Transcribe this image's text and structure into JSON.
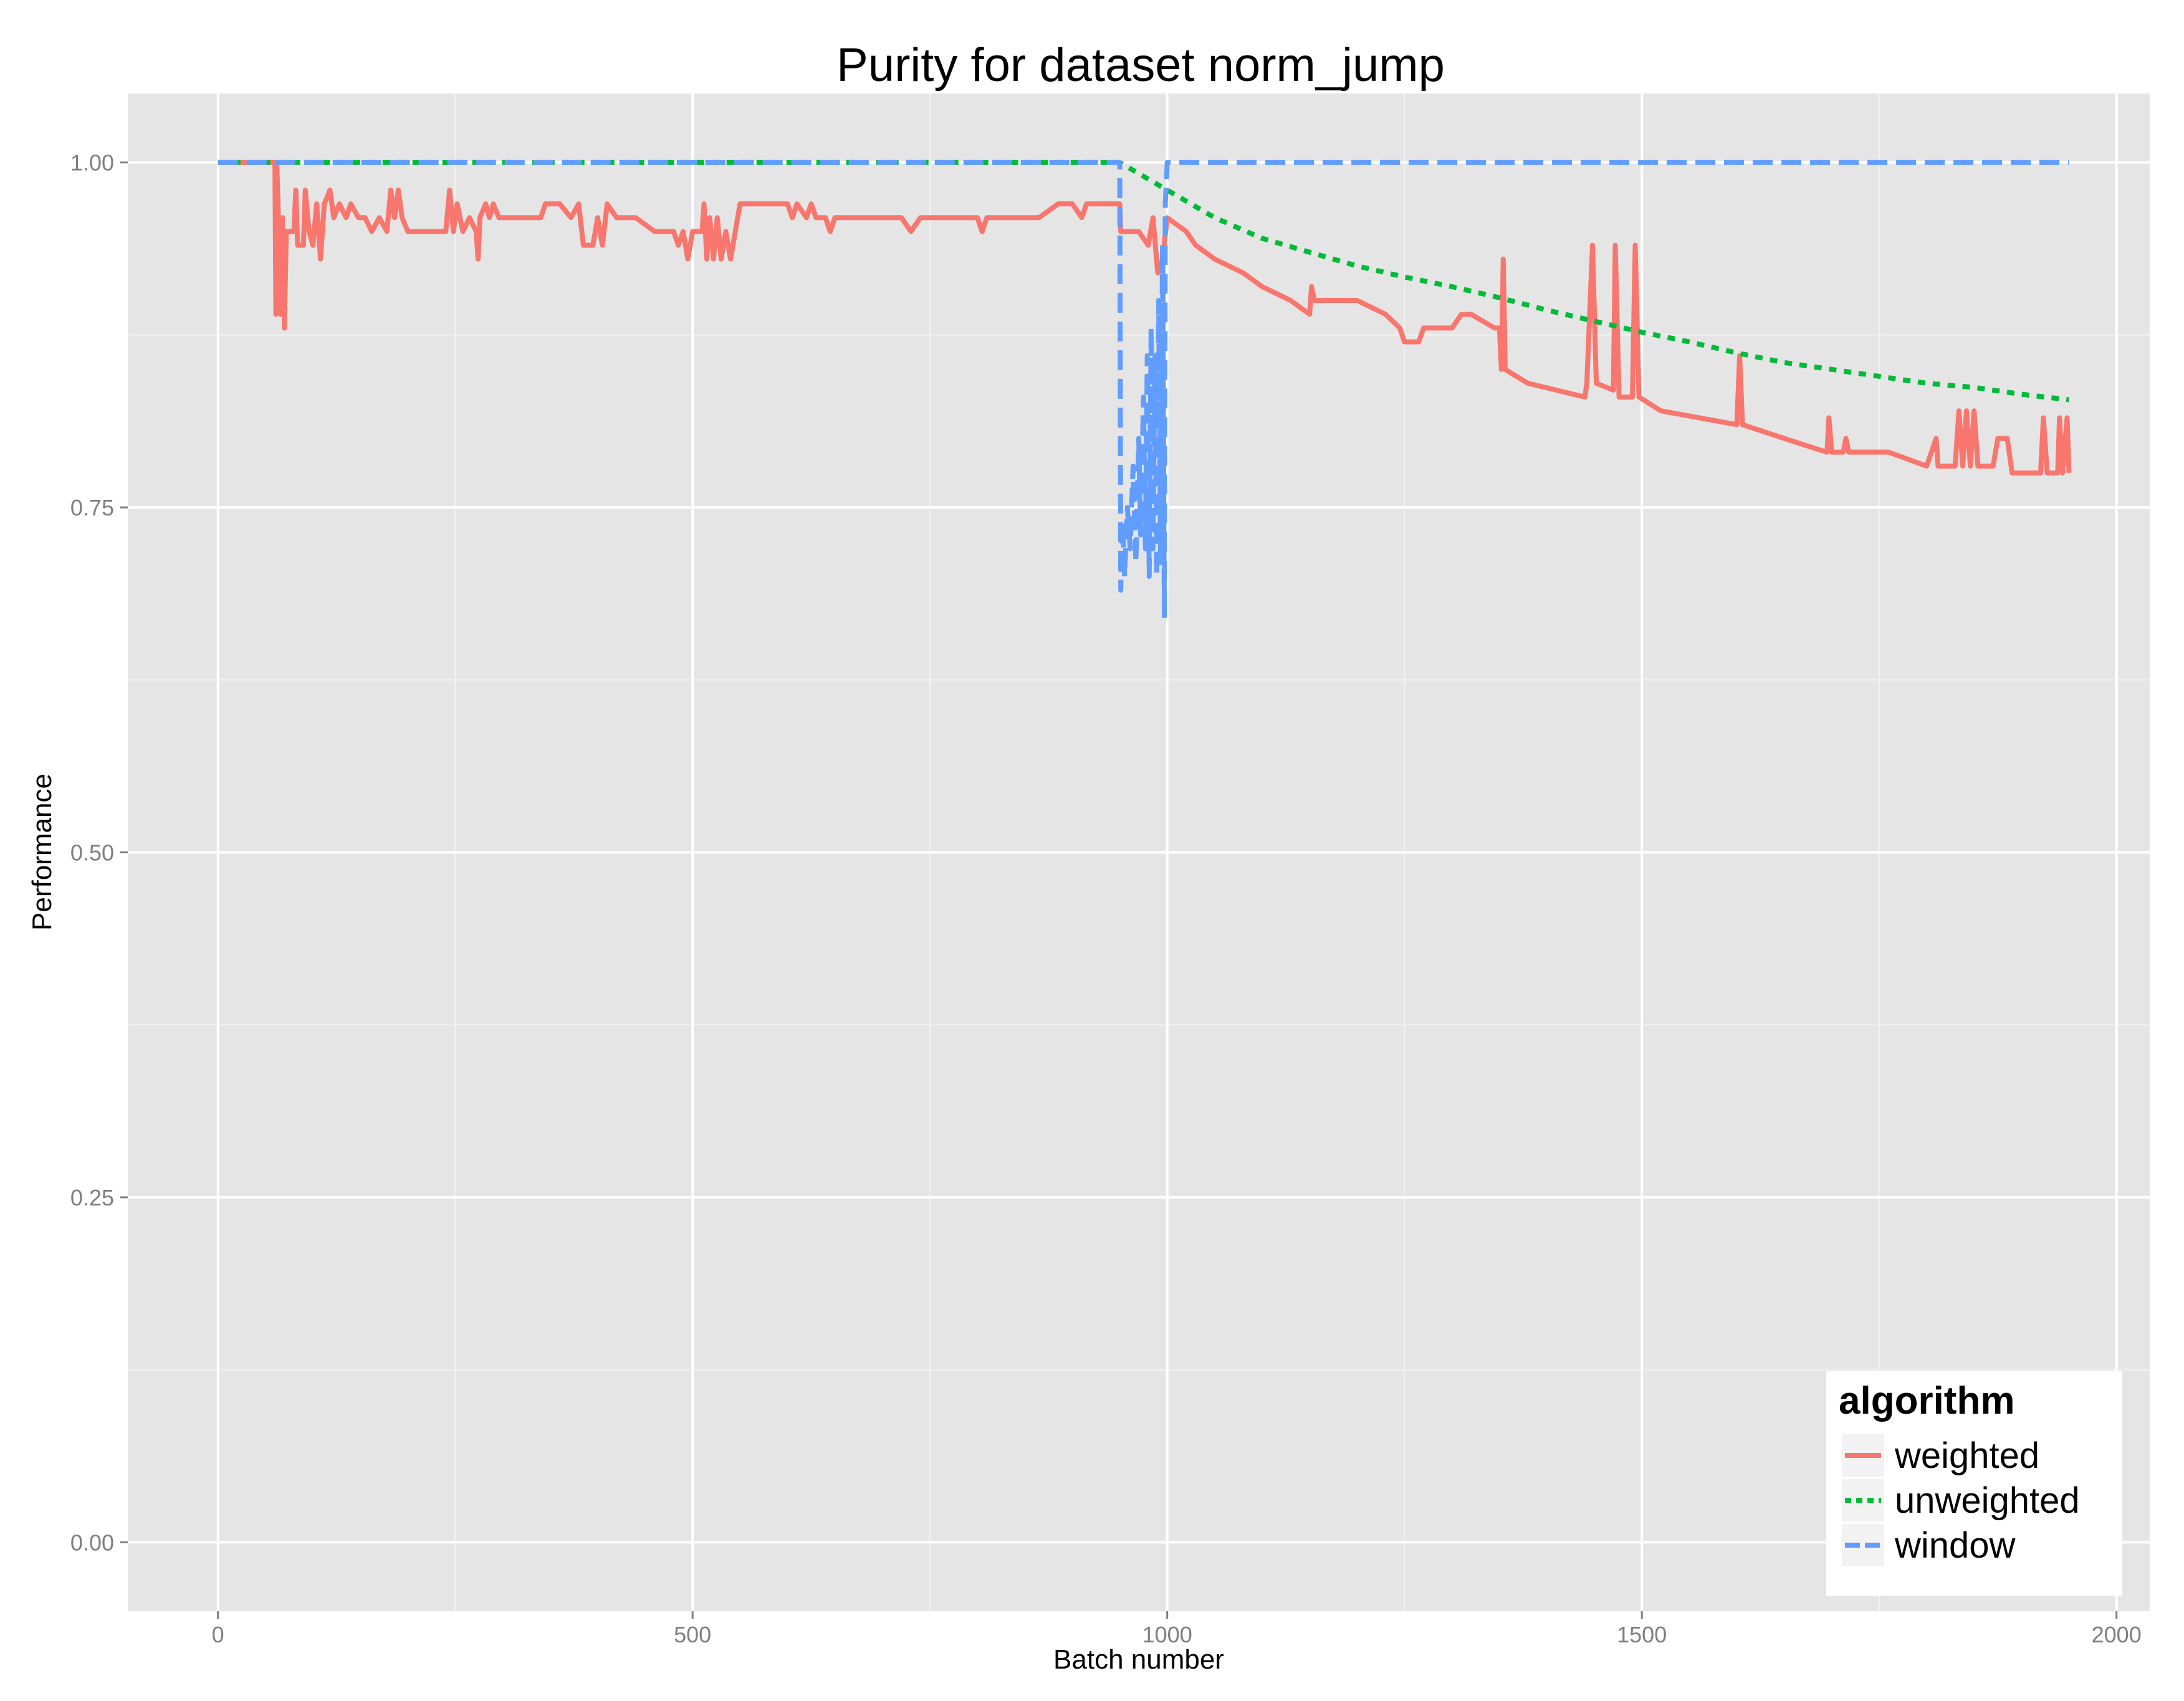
{
  "chart_data": {
    "type": "line",
    "title": "Purity for dataset norm_jump",
    "xlabel": "Batch number",
    "ylabel": "Performance",
    "xlim": [
      -95,
      2035
    ],
    "ylim": [
      -0.05,
      1.05
    ],
    "x_ticks": [
      0,
      500,
      1000,
      1500,
      2000
    ],
    "x_tick_labels": [
      "0",
      "500",
      "1000",
      "1500",
      "2000"
    ],
    "y_ticks": [
      0.0,
      0.25,
      0.5,
      0.75,
      1.0
    ],
    "y_tick_labels": [
      "0.00",
      "0.25",
      "0.50",
      "0.75",
      "1.00"
    ],
    "grid": true,
    "legend": {
      "title": "algorithm",
      "position": "bottom-right"
    },
    "series": [
      {
        "name": "weighted",
        "color": "#F8766D",
        "style": "solid",
        "points": [
          [
            0,
            1.0
          ],
          [
            60,
            1.0
          ],
          [
            61,
            0.89
          ],
          [
            62,
            1.0
          ],
          [
            64,
            0.95
          ],
          [
            66,
            0.89
          ],
          [
            68,
            0.96
          ],
          [
            70,
            0.88
          ],
          [
            72,
            0.95
          ],
          [
            80,
            0.95
          ],
          [
            82,
            0.98
          ],
          [
            84,
            0.94
          ],
          [
            90,
            0.94
          ],
          [
            92,
            0.98
          ],
          [
            96,
            0.95
          ],
          [
            100,
            0.94
          ],
          [
            104,
            0.97
          ],
          [
            108,
            0.93
          ],
          [
            112,
            0.97
          ],
          [
            118,
            0.98
          ],
          [
            122,
            0.96
          ],
          [
            128,
            0.97
          ],
          [
            135,
            0.96
          ],
          [
            140,
            0.97
          ],
          [
            148,
            0.96
          ],
          [
            155,
            0.96
          ],
          [
            162,
            0.95
          ],
          [
            170,
            0.96
          ],
          [
            178,
            0.95
          ],
          [
            182,
            0.98
          ],
          [
            186,
            0.96
          ],
          [
            190,
            0.98
          ],
          [
            194,
            0.96
          ],
          [
            200,
            0.95
          ],
          [
            220,
            0.95
          ],
          [
            240,
            0.95
          ],
          [
            244,
            0.98
          ],
          [
            248,
            0.95
          ],
          [
            252,
            0.97
          ],
          [
            258,
            0.95
          ],
          [
            265,
            0.96
          ],
          [
            272,
            0.95
          ],
          [
            274,
            0.93
          ],
          [
            276,
            0.96
          ],
          [
            282,
            0.97
          ],
          [
            286,
            0.96
          ],
          [
            290,
            0.97
          ],
          [
            296,
            0.96
          ],
          [
            300,
            0.96
          ],
          [
            320,
            0.96
          ],
          [
            340,
            0.96
          ],
          [
            345,
            0.97
          ],
          [
            360,
            0.97
          ],
          [
            372,
            0.96
          ],
          [
            380,
            0.97
          ],
          [
            385,
            0.94
          ],
          [
            395,
            0.94
          ],
          [
            400,
            0.96
          ],
          [
            405,
            0.94
          ],
          [
            410,
            0.97
          ],
          [
            420,
            0.96
          ],
          [
            440,
            0.96
          ],
          [
            460,
            0.95
          ],
          [
            480,
            0.95
          ],
          [
            485,
            0.94
          ],
          [
            490,
            0.95
          ],
          [
            495,
            0.93
          ],
          [
            500,
            0.95
          ],
          [
            510,
            0.95
          ],
          [
            512,
            0.97
          ],
          [
            515,
            0.93
          ],
          [
            518,
            0.96
          ],
          [
            522,
            0.93
          ],
          [
            526,
            0.96
          ],
          [
            530,
            0.93
          ],
          [
            535,
            0.95
          ],
          [
            540,
            0.93
          ],
          [
            545,
            0.95
          ],
          [
            550,
            0.97
          ],
          [
            560,
            0.97
          ],
          [
            580,
            0.97
          ],
          [
            600,
            0.97
          ],
          [
            605,
            0.96
          ],
          [
            610,
            0.97
          ],
          [
            620,
            0.96
          ],
          [
            625,
            0.97
          ],
          [
            630,
            0.96
          ],
          [
            640,
            0.96
          ],
          [
            645,
            0.95
          ],
          [
            650,
            0.96
          ],
          [
            660,
            0.96
          ],
          [
            700,
            0.96
          ],
          [
            720,
            0.96
          ],
          [
            730,
            0.95
          ],
          [
            740,
            0.96
          ],
          [
            790,
            0.96
          ],
          [
            800,
            0.96
          ],
          [
            805,
            0.95
          ],
          [
            810,
            0.96
          ],
          [
            840,
            0.96
          ],
          [
            865,
            0.96
          ],
          [
            885,
            0.97
          ],
          [
            900,
            0.97
          ],
          [
            910,
            0.96
          ],
          [
            915,
            0.97
          ],
          [
            930,
            0.97
          ],
          [
            950,
            0.97
          ],
          [
            951,
            0.95
          ],
          [
            970,
            0.95
          ],
          [
            980,
            0.94
          ],
          [
            985,
            0.96
          ],
          [
            990,
            0.92
          ],
          [
            995,
            0.93
          ],
          [
            1000,
            0.96
          ],
          [
            1010,
            0.955
          ],
          [
            1020,
            0.95
          ],
          [
            1030,
            0.94
          ],
          [
            1050,
            0.93
          ],
          [
            1080,
            0.92
          ],
          [
            1100,
            0.91
          ],
          [
            1130,
            0.9
          ],
          [
            1150,
            0.89
          ],
          [
            1152,
            0.91
          ],
          [
            1155,
            0.9
          ],
          [
            1170,
            0.9
          ],
          [
            1200,
            0.9
          ],
          [
            1230,
            0.89
          ],
          [
            1245,
            0.88
          ],
          [
            1250,
            0.87
          ],
          [
            1265,
            0.87
          ],
          [
            1270,
            0.88
          ],
          [
            1285,
            0.88
          ],
          [
            1300,
            0.88
          ],
          [
            1310,
            0.89
          ],
          [
            1320,
            0.89
          ],
          [
            1345,
            0.88
          ],
          [
            1350,
            0.88
          ],
          [
            1352,
            0.85
          ],
          [
            1354,
            0.93
          ],
          [
            1356,
            0.85
          ],
          [
            1380,
            0.84
          ],
          [
            1440,
            0.83
          ],
          [
            1442,
            0.84
          ],
          [
            1448,
            0.94
          ],
          [
            1452,
            0.84
          ],
          [
            1470,
            0.835
          ],
          [
            1472,
            0.94
          ],
          [
            1476,
            0.83
          ],
          [
            1490,
            0.83
          ],
          [
            1493,
            0.94
          ],
          [
            1497,
            0.83
          ],
          [
            1520,
            0.82
          ],
          [
            1560,
            0.815
          ],
          [
            1600,
            0.81
          ],
          [
            1603,
            0.86
          ],
          [
            1606,
            0.81
          ],
          [
            1650,
            0.8
          ],
          [
            1695,
            0.79
          ],
          [
            1697,
            0.815
          ],
          [
            1700,
            0.79
          ],
          [
            1712,
            0.79
          ],
          [
            1715,
            0.8
          ],
          [
            1718,
            0.79
          ],
          [
            1740,
            0.79
          ],
          [
            1760,
            0.79
          ],
          [
            1800,
            0.78
          ],
          [
            1810,
            0.8
          ],
          [
            1812,
            0.78
          ],
          [
            1830,
            0.78
          ],
          [
            1834,
            0.82
          ],
          [
            1838,
            0.78
          ],
          [
            1842,
            0.82
          ],
          [
            1846,
            0.78
          ],
          [
            1850,
            0.82
          ],
          [
            1854,
            0.78
          ],
          [
            1870,
            0.78
          ],
          [
            1875,
            0.8
          ],
          [
            1885,
            0.8
          ],
          [
            1890,
            0.775
          ],
          [
            1920,
            0.775
          ],
          [
            1923,
            0.815
          ],
          [
            1927,
            0.775
          ],
          [
            1938,
            0.775
          ],
          [
            1940,
            0.815
          ],
          [
            1943,
            0.775
          ],
          [
            1948,
            0.815
          ],
          [
            1950,
            0.775
          ]
        ]
      },
      {
        "name": "unweighted",
        "color": "#00BA38",
        "style": "dotted",
        "points": [
          [
            0,
            1.0
          ],
          [
            950,
            1.0
          ],
          [
            1000,
            0.98
          ],
          [
            1050,
            0.96
          ],
          [
            1100,
            0.945
          ],
          [
            1150,
            0.935
          ],
          [
            1200,
            0.925
          ],
          [
            1250,
            0.917
          ],
          [
            1300,
            0.91
          ],
          [
            1350,
            0.902
          ],
          [
            1400,
            0.893
          ],
          [
            1450,
            0.885
          ],
          [
            1500,
            0.877
          ],
          [
            1550,
            0.87
          ],
          [
            1600,
            0.862
          ],
          [
            1650,
            0.855
          ],
          [
            1700,
            0.85
          ],
          [
            1750,
            0.845
          ],
          [
            1800,
            0.84
          ],
          [
            1850,
            0.837
          ],
          [
            1900,
            0.832
          ],
          [
            1950,
            0.828
          ]
        ]
      },
      {
        "name": "window",
        "color": "#619CFF",
        "style": "dashed",
        "points": [
          [
            0,
            1.0
          ],
          [
            950,
            1.0
          ],
          [
            951,
            0.69
          ],
          [
            953,
            0.74
          ],
          [
            955,
            0.7
          ],
          [
            958,
            0.75
          ],
          [
            961,
            0.72
          ],
          [
            964,
            0.78
          ],
          [
            967,
            0.71
          ],
          [
            970,
            0.8
          ],
          [
            972,
            0.73
          ],
          [
            975,
            0.83
          ],
          [
            977,
            0.72
          ],
          [
            979,
            0.86
          ],
          [
            981,
            0.7
          ],
          [
            983,
            0.88
          ],
          [
            985,
            0.72
          ],
          [
            987,
            0.86
          ],
          [
            989,
            0.7
          ],
          [
            991,
            0.9
          ],
          [
            993,
            0.71
          ],
          [
            995,
            0.94
          ],
          [
            997,
            0.67
          ],
          [
            998,
            0.97
          ],
          [
            1000,
            1.0
          ],
          [
            1950,
            1.0
          ]
        ]
      }
    ]
  }
}
